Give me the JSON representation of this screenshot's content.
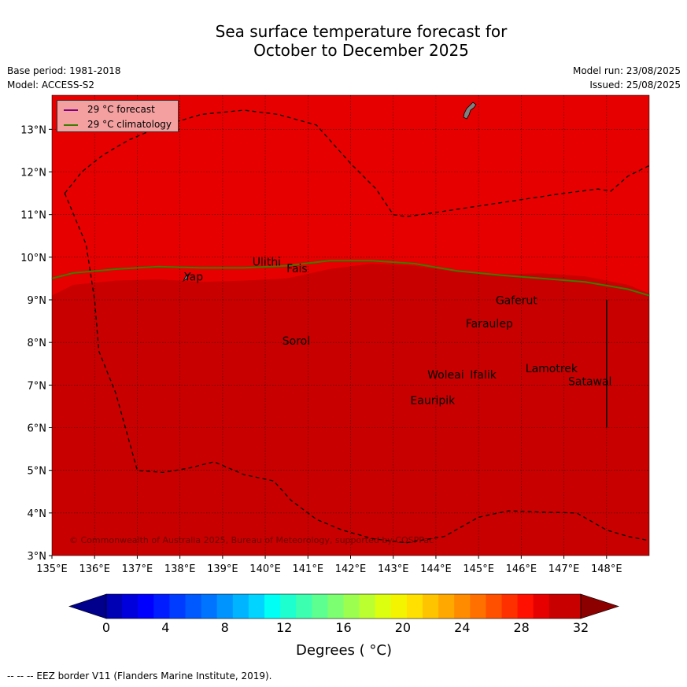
{
  "title": {
    "line1": "Sea surface temperature forecast for",
    "line2": "October to December 2025"
  },
  "meta": {
    "base_period": "Base period: 1981-2018",
    "model": "Model: ACCESS-S2",
    "model_run": "Model run: 23/08/2025",
    "issued": "Issued: 25/08/2025"
  },
  "map": {
    "lon_range": [
      135,
      149
    ],
    "lat_range": [
      3,
      13.8
    ],
    "lon_ticks": [
      "135°E",
      "136°E",
      "137°E",
      "138°E",
      "139°E",
      "140°E",
      "141°E",
      "142°E",
      "143°E",
      "144°E",
      "145°E",
      "146°E",
      "147°E",
      "148°E"
    ],
    "lat_ticks": [
      "3°N",
      "4°N",
      "5°N",
      "6°N",
      "7°N",
      "8°N",
      "9°N",
      "10°N",
      "11°N",
      "12°N",
      "13°N"
    ],
    "colors": {
      "warm_fill": "#e60000",
      "hot_fill": "#c80000",
      "forecast_line": "#800080",
      "climatology_line": "#3a7d00",
      "land": "#808080"
    },
    "legend": {
      "forecast": "29 °C  forecast",
      "climatology": "29 °C  climatology"
    },
    "places": [
      {
        "name": "Ulithi",
        "lon": 139.7,
        "lat": 9.8
      },
      {
        "name": "Fais",
        "lon": 140.5,
        "lat": 9.65
      },
      {
        "name": "Yap",
        "lon": 138.1,
        "lat": 9.45
      },
      {
        "name": "Gaferut",
        "lon": 145.4,
        "lat": 8.9
      },
      {
        "name": "Faraulep",
        "lon": 144.7,
        "lat": 8.35
      },
      {
        "name": "Sorol",
        "lon": 140.4,
        "lat": 7.95
      },
      {
        "name": "Woleai",
        "lon": 143.8,
        "lat": 7.15
      },
      {
        "name": "Ifalik",
        "lon": 144.8,
        "lat": 7.15
      },
      {
        "name": "Lamotrek",
        "lon": 146.1,
        "lat": 7.3
      },
      {
        "name": "Satawal",
        "lon": 147.1,
        "lat": 7.0
      },
      {
        "name": "Eauripik",
        "lon": 143.4,
        "lat": 6.55
      }
    ],
    "copyright": "© Commonwealth of Australia 2025, Bureau of Meteorology, supported by COSPPac"
  },
  "colorbar": {
    "label": "Degrees ( °C)",
    "ticks": [
      "0",
      "4",
      "8",
      "12",
      "16",
      "20",
      "24",
      "28",
      "32"
    ],
    "colors": [
      "#00008c",
      "#0000b4",
      "#0000dc",
      "#0000ff",
      "#001cff",
      "#003cff",
      "#0058ff",
      "#0074ff",
      "#0094ff",
      "#00b4ff",
      "#00d4ff",
      "#00fff4",
      "#1effd0",
      "#3cffb0",
      "#5cff90",
      "#7cff70",
      "#9cff50",
      "#bcff30",
      "#dcff10",
      "#f4f400",
      "#ffe000",
      "#ffc400",
      "#ffa800",
      "#ff8c00",
      "#ff7000",
      "#ff5000",
      "#ff3000",
      "#ff1000",
      "#e60000",
      "#c80000",
      "#8c0000"
    ]
  },
  "footer": "--  --  -- EEZ border V11 (Flanders Marine Institute, 2019)."
}
